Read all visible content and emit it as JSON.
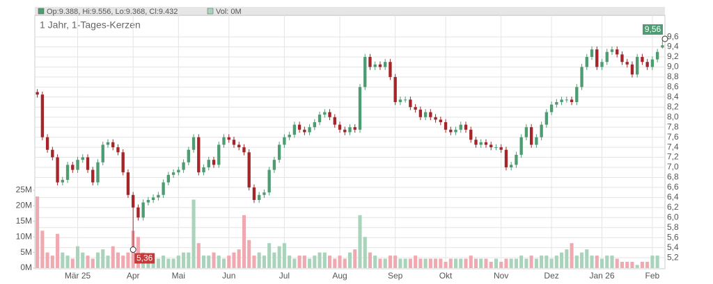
{
  "chart_data": {
    "type": "candlestick",
    "title": "1 Jahr, 1-Tages-Kerzen",
    "legend": [
      "Op:9.388, Hi:9.556, Lo:9.368, Cl:9.432",
      "Vol: 0M"
    ],
    "up_color": "#4e9c72",
    "down_color": "#a3262a",
    "up_volume_color": "#a9d3bb",
    "down_volume_color": "#f1a9b1",
    "categories": [
      null,
      null,
      null,
      null,
      null,
      null,
      null,
      null,
      "Mär 25",
      null,
      null,
      null,
      null,
      null,
      null,
      null,
      null,
      null,
      null,
      "Apr",
      null,
      null,
      null,
      null,
      null,
      null,
      null,
      null,
      "Mai",
      null,
      null,
      null,
      null,
      null,
      null,
      null,
      null,
      null,
      "Jun",
      null,
      null,
      null,
      null,
      null,
      null,
      null,
      null,
      null,
      null,
      "Jul",
      null,
      null,
      null,
      null,
      null,
      null,
      null,
      null,
      null,
      null,
      "Aug",
      null,
      null,
      null,
      null,
      null,
      null,
      null,
      null,
      null,
      null,
      "Sep",
      null,
      null,
      null,
      null,
      null,
      null,
      null,
      null,
      null,
      "Okt",
      null,
      null,
      null,
      null,
      null,
      null,
      null,
      null,
      null,
      null,
      "Nov",
      null,
      null,
      null,
      null,
      null,
      null,
      null,
      null,
      null,
      "Dez",
      null,
      null,
      null,
      null,
      null,
      null,
      null,
      null,
      null,
      "Jan 26",
      null,
      null,
      null,
      null,
      null,
      null,
      null,
      null,
      null,
      "Feb",
      null,
      null
    ],
    "open": [
      8.5,
      8.45,
      7.6,
      7.35,
      7.2,
      6.7,
      6.75,
      7.05,
      6.95,
      7.15,
      7.2,
      6.95,
      6.7,
      7.1,
      7.45,
      7.5,
      7.4,
      7.3,
      6.9,
      6.45,
      6.2,
      6.0,
      6.3,
      6.35,
      6.4,
      6.45,
      6.7,
      6.85,
      6.9,
      6.95,
      7.1,
      7.35,
      7.6,
      6.9,
      7.0,
      7.15,
      7.05,
      7.45,
      7.6,
      7.55,
      7.45,
      7.4,
      7.3,
      6.6,
      6.35,
      6.45,
      6.5,
      6.95,
      7.15,
      7.45,
      7.6,
      7.65,
      7.85,
      7.75,
      7.7,
      7.8,
      7.9,
      8.05,
      8.1,
      8.0,
      7.85,
      7.75,
      7.7,
      7.8,
      7.75,
      8.6,
      9.2,
      9.0,
      9.05,
      9.0,
      9.1,
      8.8,
      8.3,
      8.35,
      8.35,
      8.2,
      8.15,
      8.0,
      8.1,
      8.0,
      7.95,
      7.9,
      7.75,
      7.7,
      7.75,
      7.85,
      7.75,
      7.55,
      7.45,
      7.5,
      7.45,
      7.4,
      7.4,
      7.35,
      7.0,
      7.05,
      7.25,
      7.6,
      7.8,
      7.45,
      7.6,
      7.85,
      8.1,
      8.25,
      8.3,
      8.35,
      8.35,
      8.3,
      8.6,
      9.0,
      9.2,
      9.35,
      9.0,
      9.1,
      9.3,
      9.35,
      9.25,
      9.1,
      9.05,
      8.85,
      9.2,
      9.1,
      9.0,
      9.15,
      9.388
    ],
    "high": [
      8.56,
      8.51,
      7.66,
      7.41,
      7.26,
      6.81,
      7.11,
      7.11,
      7.21,
      7.26,
      7.26,
      7.01,
      7.16,
      7.51,
      7.56,
      7.56,
      7.46,
      7.36,
      6.96,
      6.51,
      6.26,
      6.36,
      6.41,
      6.46,
      6.51,
      6.76,
      6.91,
      6.96,
      7.01,
      7.16,
      7.41,
      7.66,
      7.66,
      7.06,
      7.21,
      7.21,
      7.51,
      7.66,
      7.66,
      7.61,
      7.51,
      7.46,
      7.36,
      6.66,
      6.51,
      6.56,
      7.01,
      7.21,
      7.51,
      7.66,
      7.71,
      7.91,
      7.91,
      7.81,
      7.86,
      7.96,
      8.11,
      8.16,
      8.16,
      8.06,
      7.91,
      7.81,
      7.86,
      7.86,
      8.66,
      9.26,
      9.26,
      9.11,
      9.11,
      9.16,
      9.16,
      8.86,
      8.41,
      8.41,
      8.41,
      8.26,
      8.21,
      8.16,
      8.16,
      8.06,
      8.01,
      7.96,
      7.81,
      7.81,
      7.91,
      7.91,
      7.81,
      7.61,
      7.56,
      7.56,
      7.51,
      7.46,
      7.46,
      7.41,
      7.11,
      7.31,
      7.66,
      7.86,
      7.86,
      7.66,
      7.91,
      8.16,
      8.31,
      8.36,
      8.41,
      8.41,
      8.41,
      8.66,
      9.06,
      9.26,
      9.41,
      9.41,
      9.16,
      9.36,
      9.41,
      9.41,
      9.31,
      9.16,
      9.11,
      9.26,
      9.26,
      9.16,
      9.21,
      9.36,
      9.556
    ],
    "low": [
      8.39,
      7.54,
      7.29,
      7.14,
      6.64,
      6.64,
      6.69,
      6.89,
      6.89,
      7.09,
      6.89,
      6.64,
      6.64,
      7.04,
      7.39,
      7.34,
      7.24,
      6.84,
      6.39,
      5.36,
      5.94,
      5.94,
      6.24,
      6.29,
      6.34,
      6.39,
      6.64,
      6.79,
      6.84,
      6.89,
      7.04,
      7.29,
      6.84,
      6.84,
      6.94,
      6.99,
      6.99,
      7.39,
      7.49,
      7.39,
      7.34,
      7.24,
      6.54,
      6.29,
      6.29,
      6.39,
      6.44,
      6.89,
      7.09,
      7.39,
      7.54,
      7.59,
      7.69,
      7.64,
      7.64,
      7.74,
      7.84,
      7.99,
      7.94,
      7.79,
      7.69,
      7.64,
      7.64,
      7.69,
      7.69,
      8.54,
      8.94,
      8.94,
      8.94,
      8.94,
      8.74,
      8.24,
      8.24,
      8.29,
      8.14,
      8.09,
      7.94,
      7.94,
      7.94,
      7.89,
      7.84,
      7.69,
      7.64,
      7.64,
      7.69,
      7.69,
      7.49,
      7.39,
      7.39,
      7.39,
      7.34,
      7.34,
      7.29,
      6.94,
      6.94,
      6.99,
      7.19,
      7.54,
      7.39,
      7.39,
      7.54,
      7.79,
      8.04,
      8.19,
      8.24,
      8.29,
      8.24,
      8.24,
      8.54,
      8.94,
      9.14,
      8.94,
      8.94,
      9.04,
      9.24,
      9.19,
      9.04,
      8.99,
      8.79,
      8.79,
      9.04,
      8.94,
      8.94,
      9.09,
      9.368
    ],
    "close": [
      8.45,
      7.6,
      7.35,
      7.2,
      6.7,
      6.75,
      7.05,
      6.95,
      7.15,
      7.2,
      6.95,
      6.7,
      7.1,
      7.45,
      7.5,
      7.4,
      7.3,
      6.9,
      6.45,
      6.2,
      6.0,
      6.3,
      6.35,
      6.4,
      6.45,
      6.7,
      6.85,
      6.9,
      6.95,
      7.1,
      7.35,
      7.6,
      6.9,
      7.0,
      7.15,
      7.05,
      7.45,
      7.6,
      7.55,
      7.45,
      7.4,
      7.3,
      6.6,
      6.35,
      6.45,
      6.5,
      6.95,
      7.15,
      7.45,
      7.6,
      7.65,
      7.85,
      7.75,
      7.7,
      7.8,
      7.9,
      8.05,
      8.1,
      8.0,
      7.85,
      7.75,
      7.7,
      7.8,
      7.75,
      8.6,
      9.2,
      9.0,
      9.05,
      9.0,
      9.1,
      8.8,
      8.3,
      8.35,
      8.35,
      8.2,
      8.15,
      8.0,
      8.1,
      8.0,
      7.95,
      7.9,
      7.75,
      7.7,
      7.75,
      7.85,
      7.75,
      7.55,
      7.45,
      7.5,
      7.45,
      7.4,
      7.4,
      7.35,
      7.0,
      7.05,
      7.25,
      7.6,
      7.8,
      7.45,
      7.6,
      7.85,
      8.1,
      8.25,
      8.3,
      8.35,
      8.35,
      8.3,
      8.6,
      9.0,
      9.2,
      9.35,
      9.0,
      9.1,
      9.3,
      9.35,
      9.25,
      9.1,
      9.05,
      8.85,
      9.2,
      9.1,
      9.0,
      9.15,
      9.3,
      9.432
    ],
    "volume": [
      23,
      12,
      5,
      4,
      11,
      5,
      4,
      3,
      7,
      5,
      4,
      3,
      5,
      6,
      4,
      7,
      5,
      4,
      5,
      12,
      10,
      5,
      4,
      3,
      3,
      4,
      3,
      3,
      4,
      5,
      5,
      22,
      8,
      4,
      4,
      5,
      4,
      3,
      4,
      5,
      6,
      17,
      9,
      4,
      5,
      4,
      8,
      5,
      7,
      8,
      4,
      3,
      4,
      4,
      3,
      4,
      5,
      5,
      4,
      3,
      4,
      3,
      5,
      6,
      17,
      10,
      5,
      4,
      3,
      3,
      4,
      4,
      3,
      3,
      3,
      4,
      3,
      3,
      3,
      3,
      3,
      2,
      3,
      3,
      3,
      3,
      4,
      3,
      3,
      3,
      2,
      3,
      2,
      3,
      3,
      3,
      4,
      3,
      4,
      3,
      4,
      4,
      3,
      4,
      5,
      6,
      8,
      4,
      5,
      6,
      4,
      4,
      3,
      4,
      4,
      3,
      2,
      2,
      2,
      1,
      2,
      2,
      4,
      4,
      0
    ],
    "ylim": [
      4.98,
      10.03
    ],
    "yticks": [
      {
        "value": 5.2,
        "label": "5,2"
      },
      {
        "value": 5.4,
        "label": "5,4"
      },
      {
        "value": 5.6,
        "label": "5,6"
      },
      {
        "value": 5.8,
        "label": "5,8"
      },
      {
        "value": 6.0,
        "label": "6,0"
      },
      {
        "value": 6.2,
        "label": "6,2"
      },
      {
        "value": 6.4,
        "label": "6,4"
      },
      {
        "value": 6.6,
        "label": "6,6"
      },
      {
        "value": 6.8,
        "label": "6,8"
      },
      {
        "value": 7.0,
        "label": "7,0"
      },
      {
        "value": 7.2,
        "label": "7,2"
      },
      {
        "value": 7.4,
        "label": "7,4"
      },
      {
        "value": 7.6,
        "label": "7,6"
      },
      {
        "value": 7.8,
        "label": "7,8"
      },
      {
        "value": 8.0,
        "label": "8,0"
      },
      {
        "value": 8.2,
        "label": "8,2"
      },
      {
        "value": 8.4,
        "label": "8,4"
      },
      {
        "value": 8.6,
        "label": "8,6"
      },
      {
        "value": 8.8,
        "label": "8,8"
      },
      {
        "value": 9.0,
        "label": "9,0"
      },
      {
        "value": 9.2,
        "label": "9,2"
      },
      {
        "value": 9.4,
        "label": "9,4"
      },
      {
        "value": 9.6,
        "label": "9,6"
      }
    ],
    "y2lim": [
      0,
      25
    ],
    "y2ticks": [
      {
        "value": 0,
        "label": "0M"
      },
      {
        "value": 5,
        "label": "5M"
      },
      {
        "value": 10,
        "label": "10M"
      },
      {
        "value": 15,
        "label": "15M"
      },
      {
        "value": 20,
        "label": "20M"
      },
      {
        "value": 25,
        "label": "25M"
      }
    ],
    "annotations": [
      {
        "label": "9,56",
        "value": 9.56,
        "color": "#4e9c72"
      },
      {
        "label": "5,36",
        "value": 5.36,
        "color": "#c83a3a"
      }
    ],
    "grid": true
  }
}
